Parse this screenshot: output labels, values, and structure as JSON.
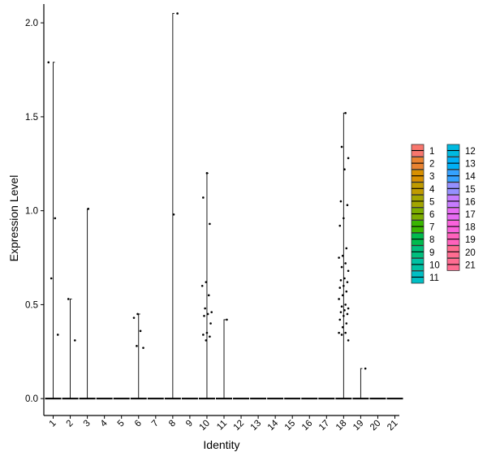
{
  "chart_data": {
    "type": "violin",
    "xlabel": "Identity",
    "ylabel": "Expression Level",
    "categories": [
      "1",
      "2",
      "3",
      "4",
      "5",
      "6",
      "7",
      "8",
      "9",
      "10",
      "11",
      "12",
      "13",
      "14",
      "15",
      "16",
      "17",
      "18",
      "19",
      "20",
      "21"
    ],
    "ylim": [
      -0.09,
      2.1
    ],
    "yticks": [
      0.0,
      0.5,
      1.0,
      1.5,
      2.0
    ],
    "ytick_labels": [
      "0.0",
      "0.5",
      "1.0",
      "1.5",
      "2.0"
    ],
    "grid": false,
    "legend_position": "right",
    "legend_columns": 2,
    "colors": [
      "#F8766D",
      "#EA8331",
      "#D89000",
      "#C09B00",
      "#A3A500",
      "#7CAE00",
      "#39B600",
      "#00BB4E",
      "#00BF7D",
      "#00C1A3",
      "#00BFC4",
      "#00BAE0",
      "#00B0F6",
      "#35A2FF",
      "#9590FF",
      "#C77CFF",
      "#E76BF3",
      "#FA62DB",
      "#FF62BC",
      "#FF6C91",
      "#FF6C91"
    ],
    "series": [
      {
        "name": "1",
        "max": 1.79,
        "points": [
          1.79,
          0.96,
          0.64,
          0.34
        ]
      },
      {
        "name": "2",
        "max": 0.53,
        "points": [
          0.53,
          0.31
        ]
      },
      {
        "name": "3",
        "max": 1.01,
        "points": [
          1.01
        ]
      },
      {
        "name": "4",
        "max": 0,
        "points": []
      },
      {
        "name": "5",
        "max": 0,
        "points": []
      },
      {
        "name": "6",
        "max": 0.45,
        "points": [
          0.45,
          0.43,
          0.36,
          0.28,
          0.27
        ]
      },
      {
        "name": "7",
        "max": 0,
        "points": []
      },
      {
        "name": "8",
        "max": 2.05,
        "points": [
          2.05,
          0.98
        ]
      },
      {
        "name": "9",
        "max": 0,
        "points": []
      },
      {
        "name": "10",
        "max": 1.2,
        "points": [
          1.2,
          1.07,
          0.93,
          0.62,
          0.6,
          0.55,
          0.48,
          0.46,
          0.45,
          0.44,
          0.4,
          0.35,
          0.34,
          0.33,
          0.31
        ]
      },
      {
        "name": "11",
        "max": 0.42,
        "points": [
          0.42
        ]
      },
      {
        "name": "12",
        "max": 0,
        "points": []
      },
      {
        "name": "13",
        "max": 0,
        "points": []
      },
      {
        "name": "14",
        "max": 0,
        "points": []
      },
      {
        "name": "15",
        "max": 0,
        "points": []
      },
      {
        "name": "16",
        "max": 0,
        "points": []
      },
      {
        "name": "17",
        "max": 0,
        "points": []
      },
      {
        "name": "18",
        "max": 1.52,
        "points": [
          1.52,
          1.34,
          1.28,
          1.22,
          1.05,
          1.03,
          0.96,
          0.92,
          0.8,
          0.76,
          0.75,
          0.72,
          0.7,
          0.68,
          0.64,
          0.63,
          0.62,
          0.6,
          0.59,
          0.57,
          0.55,
          0.53,
          0.5,
          0.49,
          0.48,
          0.47,
          0.46,
          0.45,
          0.44,
          0.42,
          0.4,
          0.38,
          0.35,
          0.35,
          0.34,
          0.31
        ]
      },
      {
        "name": "19",
        "max": 0.16,
        "points": [
          0.16
        ]
      },
      {
        "name": "20",
        "max": 0,
        "points": []
      },
      {
        "name": "21",
        "max": 0,
        "points": []
      }
    ]
  }
}
